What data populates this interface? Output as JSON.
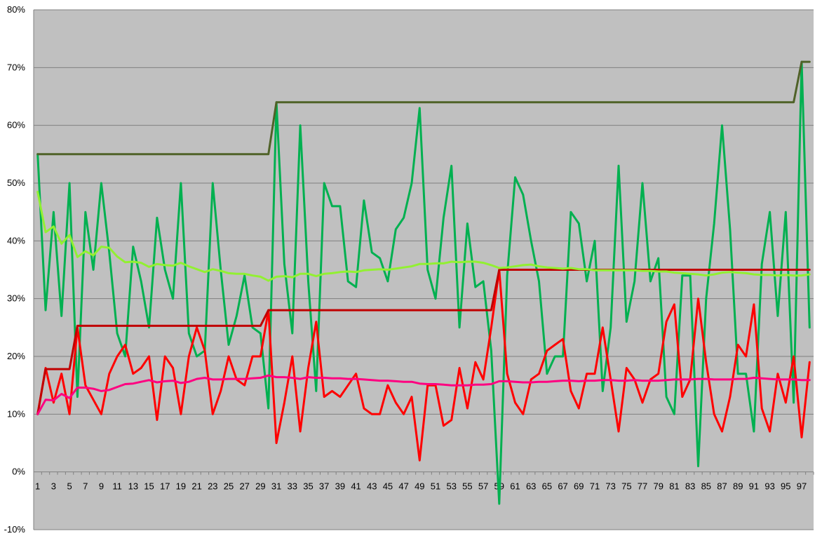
{
  "chart_data": {
    "type": "line",
    "title": "",
    "xlabel": "",
    "ylabel": "",
    "ylim": [
      -10,
      80
    ],
    "y_ticks": [
      -10,
      0,
      10,
      20,
      30,
      40,
      50,
      60,
      70,
      80
    ],
    "y_tick_labels": [
      "-10%",
      "0%",
      "10%",
      "20%",
      "30%",
      "40%",
      "50%",
      "60%",
      "70%",
      "80%"
    ],
    "x_tick_labels": [
      "1",
      "3",
      "5",
      "7",
      "9",
      "11",
      "13",
      "15",
      "17",
      "19",
      "21",
      "23",
      "25",
      "27",
      "29",
      "31",
      "33",
      "35",
      "37",
      "39",
      "41",
      "43",
      "45",
      "47",
      "49",
      "51",
      "53",
      "55",
      "57",
      "59",
      "61",
      "63",
      "65",
      "67",
      "69",
      "71",
      "73",
      "75",
      "77",
      "79",
      "81",
      "83",
      "85",
      "87",
      "89",
      "91",
      "93",
      "95",
      "97"
    ],
    "x": [
      1,
      2,
      3,
      4,
      5,
      6,
      7,
      8,
      9,
      10,
      11,
      12,
      13,
      14,
      15,
      16,
      17,
      18,
      19,
      20,
      21,
      22,
      23,
      24,
      25,
      26,
      27,
      28,
      29,
      30,
      31,
      32,
      33,
      34,
      35,
      36,
      37,
      38,
      39,
      40,
      41,
      42,
      43,
      44,
      45,
      46,
      47,
      48,
      49,
      50,
      51,
      52,
      53,
      54,
      55,
      56,
      57,
      58,
      59,
      60,
      61,
      62,
      63,
      64,
      65,
      66,
      67,
      68,
      69,
      70,
      71,
      72,
      73,
      74,
      75,
      76,
      77,
      78,
      79,
      80,
      81,
      82,
      83,
      84,
      85,
      86,
      87,
      88,
      89,
      90,
      91,
      92,
      93,
      94,
      95,
      96,
      97,
      98
    ],
    "grid": true,
    "plot_background": "#c0c0c0",
    "gridline_color": "#808080",
    "series": [
      {
        "color": "#00b050",
        "values": [
          55,
          28,
          45,
          27,
          50,
          13,
          45,
          35,
          50,
          38,
          24,
          20,
          39,
          33,
          25,
          44,
          35,
          30,
          50,
          24,
          20,
          21,
          50,
          35,
          22,
          27,
          34,
          25,
          24,
          11,
          64,
          36,
          24,
          60,
          33,
          14,
          50,
          46,
          46,
          33,
          32,
          47,
          38,
          37,
          33,
          42,
          44,
          50,
          63,
          35,
          30,
          44,
          53,
          25,
          43,
          32,
          33,
          21,
          -5.5,
          34,
          51,
          48,
          40,
          33,
          17,
          20,
          20,
          45,
          43,
          33,
          40,
          14,
          25,
          53,
          26,
          33,
          50,
          33,
          37,
          13,
          10,
          34,
          34,
          1,
          30,
          43,
          60,
          42,
          17,
          17,
          7,
          36,
          45,
          27,
          45,
          12,
          71,
          25
        ]
      },
      {
        "color": "#ff0000",
        "values": [
          10,
          18,
          12,
          17,
          10,
          25,
          15,
          12.5,
          10,
          17,
          20,
          22,
          17,
          18,
          20,
          9,
          20,
          18,
          10,
          20,
          25,
          21,
          10,
          14,
          20,
          16,
          15,
          20,
          20,
          28,
          5,
          12,
          20,
          7,
          18,
          26,
          13,
          14,
          13,
          15,
          17,
          11,
          10,
          10,
          15,
          12,
          10,
          13,
          2,
          15,
          15,
          8,
          9,
          18,
          11,
          19,
          16,
          25,
          35,
          17,
          12,
          10,
          16,
          17,
          21,
          22,
          23,
          14,
          11,
          17,
          17,
          25,
          16,
          7,
          18,
          16,
          12,
          16,
          17,
          26,
          29,
          13,
          16,
          30,
          19,
          10,
          7,
          13,
          22,
          20,
          29,
          11,
          7,
          17,
          12,
          20,
          6,
          19
        ]
      },
      {
        "color": "#4f6228",
        "values": [
          55,
          55,
          55,
          55,
          55,
          55,
          55,
          55,
          55,
          55,
          55,
          55,
          55,
          55,
          55,
          55,
          55,
          55,
          55,
          55,
          55,
          55,
          55,
          55,
          55,
          55,
          55,
          55,
          55,
          55,
          64,
          64,
          64,
          64,
          64,
          64,
          64,
          64,
          64,
          64,
          64,
          64,
          64,
          64,
          64,
          64,
          64,
          64,
          64,
          64,
          64,
          64,
          64,
          64,
          64,
          64,
          64,
          64,
          64,
          64,
          64,
          64,
          64,
          64,
          64,
          64,
          64,
          64,
          64,
          64,
          64,
          64,
          64,
          64,
          64,
          64,
          64,
          64,
          64,
          64,
          64,
          64,
          64,
          64,
          64,
          64,
          64,
          64,
          64,
          64,
          64,
          64,
          64,
          64,
          64,
          64,
          71,
          71
        ]
      },
      {
        "color": "#c00000",
        "values": [
          10,
          17.8,
          17.8,
          17.8,
          17.8,
          25.3,
          25.3,
          25.3,
          25.3,
          25.3,
          25.3,
          25.3,
          25.3,
          25.3,
          25.3,
          25.3,
          25.3,
          25.3,
          25.3,
          25.3,
          25.3,
          25.3,
          25.3,
          25.3,
          25.3,
          25.3,
          25.3,
          25.3,
          25.3,
          28,
          28,
          28,
          28,
          28,
          28,
          28,
          28,
          28,
          28,
          28,
          28,
          28,
          28,
          28,
          28,
          28,
          28,
          28,
          28,
          28,
          28,
          28,
          28,
          28,
          28,
          28,
          28,
          28,
          35,
          35,
          35,
          35,
          35,
          35,
          35,
          35,
          35,
          35,
          35,
          35,
          35,
          35,
          35,
          35,
          35,
          35,
          35,
          35,
          35,
          35,
          35,
          35,
          35,
          35,
          35,
          35,
          35,
          35,
          35,
          35,
          35,
          35,
          35,
          35,
          35,
          35,
          35,
          35
        ]
      },
      {
        "color": "#92f032",
        "values": [
          48.5,
          41.5,
          42.5,
          39.5,
          41,
          37.2,
          38.2,
          37.5,
          39,
          38.8,
          37.3,
          36.3,
          36.4,
          36.2,
          35.5,
          36,
          35.8,
          35.7,
          36.2,
          35.6,
          35.1,
          34.6,
          35.1,
          34.8,
          34.4,
          34.3,
          34.3,
          34,
          33.8,
          33.1,
          33.8,
          33.9,
          33.7,
          34.3,
          34.3,
          33.9,
          34.3,
          34.4,
          34.6,
          34.7,
          34.6,
          34.9,
          35,
          35.1,
          35,
          35.2,
          35.4,
          35.6,
          36,
          36,
          36.1,
          36.1,
          36.4,
          36.3,
          36.4,
          36.4,
          36.2,
          35.8,
          35.3,
          35.4,
          35.6,
          35.8,
          35.9,
          35.6,
          35.4,
          35.3,
          35.2,
          35.3,
          35.1,
          35.1,
          34.9,
          34.9,
          34.9,
          34.9,
          34.9,
          34.9,
          34.8,
          34.8,
          34.7,
          34.7,
          34.5,
          34.4,
          34.3,
          34.2,
          34,
          34.2,
          34.5,
          34.6,
          34.5,
          34.4,
          34.2,
          34.1,
          34.1,
          34,
          34.1,
          34,
          34,
          34.2
        ]
      },
      {
        "color": "#ff0080",
        "values": [
          10,
          12.5,
          12.4,
          13.5,
          12.8,
          14.6,
          14.6,
          14.4,
          14,
          14.2,
          14.7,
          15.2,
          15.3,
          15.6,
          15.9,
          15.5,
          15.7,
          15.8,
          15.4,
          15.6,
          16.1,
          16.3,
          16,
          16,
          16.1,
          16.1,
          16.1,
          16.2,
          16.3,
          16.7,
          16.4,
          16.4,
          16.3,
          16.1,
          16.4,
          16.3,
          16.3,
          16.2,
          16.2,
          16.1,
          16.1,
          16,
          15.9,
          15.8,
          15.8,
          15.7,
          15.6,
          15.6,
          15.3,
          15.2,
          15.2,
          15.1,
          15,
          15,
          15,
          15.1,
          15.1,
          15.2,
          15.7,
          15.7,
          15.6,
          15.5,
          15.5,
          15.6,
          15.6,
          15.7,
          15.8,
          15.8,
          15.7,
          15.8,
          15.8,
          15.9,
          15.9,
          15.8,
          15.8,
          15.9,
          15.8,
          15.8,
          15.8,
          15.9,
          16,
          16,
          16,
          16.1,
          16.1,
          16,
          16,
          16,
          16.1,
          16.1,
          16.3,
          16.2,
          16.1,
          16,
          16,
          16,
          15.9,
          15.9
        ]
      }
    ]
  }
}
